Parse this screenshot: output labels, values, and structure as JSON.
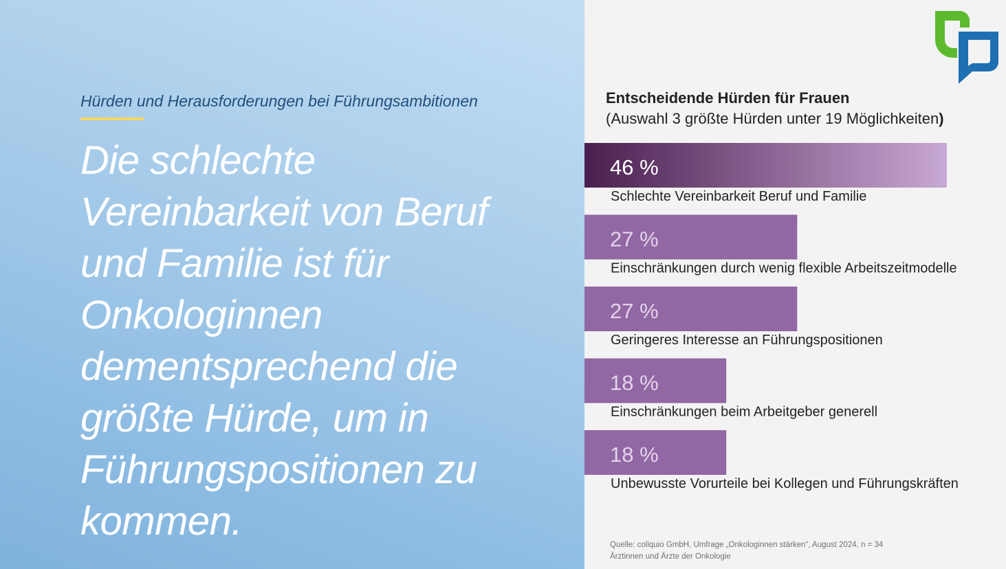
{
  "left": {
    "subtitle": "Hürden und Herausforderungen bei Führungsambitionen",
    "headline_lines": [
      "Die schlechte",
      "Vereinbarkeit von Beruf",
      "und Familie ist für",
      "Onkologinnen",
      "dementsprechend die",
      "größte Hürde, um in",
      "Führungspositionen zu",
      "kommen."
    ]
  },
  "chart_data": {
    "type": "bar",
    "orientation": "horizontal",
    "title": "Entscheidende Hürden für Frauen",
    "subtitle": "(Auswahl 3 größte Hürden unter 19 Möglichkeiten",
    "subtitle_close": ")",
    "categories": [
      "Schlechte Vereinbarkeit Beruf und Familie",
      "Einschränkungen durch wenig flexible Arbeitszeitmodelle",
      "Geringeres Interesse an Führungspositionen",
      "Einschränkungen beim Arbeitgeber generell",
      "Unbewusste Vorurteile bei Kollegen und Führungskräften"
    ],
    "values": [
      46,
      27,
      27,
      18,
      18
    ],
    "value_labels": [
      "46 %",
      "27 %",
      "27 %",
      "18 %",
      "18 %"
    ],
    "unit": "%",
    "grid": false,
    "legend": "none",
    "colors": {
      "highlight_start": "#4a1f4f",
      "highlight_end": "#c8a8d4",
      "bar": "#9168a3",
      "highlight_text": "#ffffff",
      "bar_text": "#e4d3ec"
    }
  },
  "source": {
    "line1": "Quelle: coliquio GmbH, Umfrage „Onkologinnen stärken“, August 2024, n = 34",
    "line2": "Ärztinnen und Ärzte der Onkologie"
  },
  "logo": {
    "name": "speech-bubble-logo",
    "colors": {
      "green": "#5dba2f",
      "blue": "#1f6fb3"
    }
  }
}
